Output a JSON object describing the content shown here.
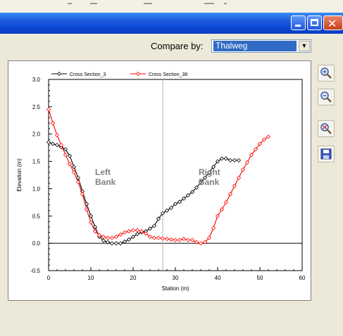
{
  "window": {
    "controls": [
      "minimize",
      "maximize",
      "close"
    ],
    "accent": "#0a47d6"
  },
  "compare": {
    "label": "Compare by:",
    "selected": "Thalweg"
  },
  "toolbar": {
    "icons": [
      "zoom-in-icon",
      "zoom-out-icon",
      "zoom-reset-icon",
      "save-icon"
    ]
  },
  "chart_data": {
    "type": "line",
    "title": "",
    "xlabel": "Station (m)",
    "ylabel": "Elevation (m)",
    "xlim": [
      0,
      60
    ],
    "ylim": [
      -0.5,
      3.0
    ],
    "xticks": [
      "0",
      "10",
      "20",
      "30",
      "40",
      "50",
      "60"
    ],
    "yticks": [
      "-0.5",
      "0.0",
      "0.5",
      "1.0",
      "1.5",
      "2.0",
      "2.5",
      "3.0"
    ],
    "vline_x": 27,
    "annotations": [
      {
        "text": "Left\nBank",
        "x": 11,
        "y": 1.12,
        "color": "#808080"
      },
      {
        "text": "Right\nBank",
        "x": 35.5,
        "y": 1.12,
        "color": "#808080"
      }
    ],
    "legend_position": "top-left",
    "series": [
      {
        "name": "Cross Section_3",
        "color": "#000000",
        "x": [
          0,
          1,
          2,
          3,
          4,
          5,
          6,
          7,
          8,
          9,
          10,
          11,
          12,
          13,
          14,
          15,
          16,
          17,
          18,
          19,
          20,
          21,
          22,
          23,
          24,
          25,
          26,
          27,
          28,
          29,
          30,
          31,
          32,
          33,
          34,
          35,
          36,
          37,
          38,
          39,
          40,
          41,
          42,
          43,
          44,
          45
        ],
        "y": [
          1.85,
          1.82,
          1.8,
          1.76,
          1.72,
          1.6,
          1.4,
          1.2,
          0.95,
          0.72,
          0.5,
          0.3,
          0.12,
          0.05,
          0.02,
          0.0,
          0.0,
          0.0,
          0.03,
          0.07,
          0.12,
          0.17,
          0.2,
          0.22,
          0.27,
          0.32,
          0.45,
          0.55,
          0.6,
          0.65,
          0.72,
          0.76,
          0.82,
          0.88,
          0.94,
          1.02,
          1.12,
          1.2,
          1.3,
          1.4,
          1.5,
          1.55,
          1.55,
          1.52,
          1.52,
          1.52
        ]
      },
      {
        "name": "Cross Section_38",
        "color": "#ff0000",
        "x": [
          0,
          1,
          2,
          3,
          4,
          5,
          6,
          7,
          8,
          9,
          10,
          11,
          12,
          13,
          14,
          15,
          16,
          17,
          18,
          19,
          20,
          21,
          22,
          23,
          24,
          25,
          26,
          27,
          28,
          29,
          30,
          31,
          32,
          33,
          34,
          35,
          36,
          37,
          38,
          39,
          40,
          41,
          42,
          43,
          44,
          45,
          46,
          47,
          48,
          49,
          50,
          51,
          52
        ],
        "y": [
          2.45,
          2.2,
          1.98,
          1.8,
          1.62,
          1.45,
          1.3,
          1.12,
          0.9,
          0.62,
          0.38,
          0.22,
          0.15,
          0.12,
          0.1,
          0.1,
          0.12,
          0.16,
          0.2,
          0.22,
          0.24,
          0.24,
          0.22,
          0.18,
          0.12,
          0.1,
          0.1,
          0.09,
          0.08,
          0.07,
          0.06,
          0.06,
          0.08,
          0.06,
          0.06,
          0.02,
          0.0,
          0.02,
          0.1,
          0.28,
          0.5,
          0.62,
          0.75,
          0.9,
          1.05,
          1.2,
          1.35,
          1.48,
          1.62,
          1.72,
          1.82,
          1.9,
          1.95
        ]
      }
    ]
  }
}
